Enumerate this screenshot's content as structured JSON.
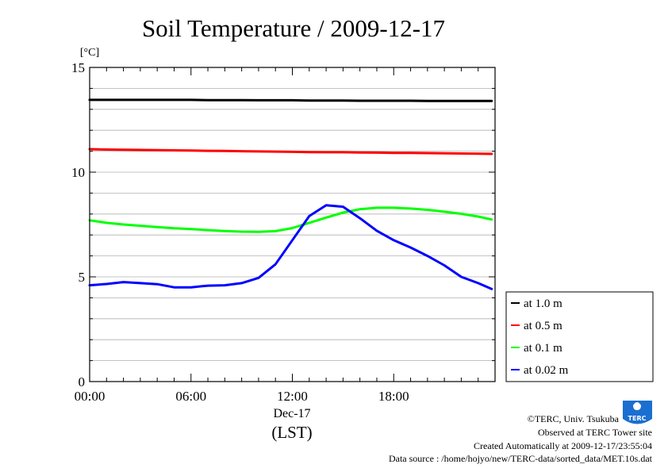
{
  "chart_data": {
    "type": "line",
    "title": "Soil Temperature / 2009-12-17",
    "unit_label": "[°C]",
    "ylim": [
      0,
      15
    ],
    "y_ticks": [
      0,
      5,
      10,
      15
    ],
    "xlim": [
      0,
      24
    ],
    "x_ticks": [
      {
        "value": 0,
        "label": "00:00"
      },
      {
        "value": 6,
        "label": "06:00"
      },
      {
        "value": 12,
        "label": "12:00"
      },
      {
        "value": 18,
        "label": "18:00"
      }
    ],
    "date_label": "Dec-17",
    "xlabel": "(LST)",
    "grid": true,
    "legend_position": "right",
    "x": [
      0,
      1,
      2,
      3,
      4,
      5,
      6,
      7,
      8,
      9,
      10,
      11,
      12,
      13,
      14,
      15,
      16,
      17,
      18,
      19,
      20,
      21,
      22,
      23,
      23.8
    ],
    "series": [
      {
        "name": "at 1.0 m",
        "color": "#000000",
        "values": [
          13.45,
          13.45,
          13.45,
          13.45,
          13.45,
          13.45,
          13.45,
          13.44,
          13.44,
          13.44,
          13.43,
          13.43,
          13.43,
          13.42,
          13.42,
          13.42,
          13.41,
          13.41,
          13.41,
          13.41,
          13.4,
          13.4,
          13.4,
          13.4,
          13.4
        ]
      },
      {
        "name": "at 0.5 m",
        "color": "#ff0000",
        "values": [
          11.1,
          11.08,
          11.07,
          11.06,
          11.05,
          11.04,
          11.03,
          11.02,
          11.01,
          11.0,
          10.99,
          10.98,
          10.97,
          10.96,
          10.95,
          10.95,
          10.94,
          10.93,
          10.92,
          10.92,
          10.91,
          10.9,
          10.89,
          10.88,
          10.87
        ]
      },
      {
        "name": "at 0.1 m",
        "color": "#00ff00",
        "values": [
          7.7,
          7.58,
          7.5,
          7.44,
          7.38,
          7.32,
          7.28,
          7.23,
          7.19,
          7.16,
          7.15,
          7.18,
          7.33,
          7.58,
          7.83,
          8.07,
          8.23,
          8.3,
          8.3,
          8.26,
          8.2,
          8.11,
          8.01,
          7.88,
          7.74
        ]
      },
      {
        "name": "at 0.02 m",
        "color": "#0000ff",
        "values": [
          4.6,
          4.66,
          4.75,
          4.7,
          4.65,
          4.5,
          4.5,
          4.58,
          4.6,
          4.7,
          4.95,
          5.6,
          6.75,
          7.9,
          8.42,
          8.35,
          7.8,
          7.2,
          6.75,
          6.4,
          6.0,
          5.55,
          5.0,
          4.7,
          4.42
        ]
      }
    ]
  },
  "footer": {
    "copyright": "©TERC, Univ. Tsukuba",
    "observed": "Observed at TERC Tower site",
    "created": "Created Automatically at 2009-12-17/23:55:04",
    "source": "Data source : /home/hojyo/new/TERC-data/sorted_data/MET.10s.dat"
  },
  "logo": {
    "text": "TERC",
    "color": "#1a6fd1"
  }
}
